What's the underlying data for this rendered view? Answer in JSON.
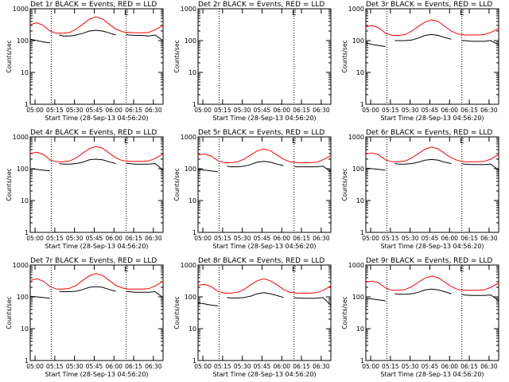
{
  "colors": {
    "events": "#000000",
    "lld": "#ff0000",
    "frame": "#000000",
    "background": "#ffffff"
  },
  "shared": {
    "xlabel": "Start Time (28-Sep-13 04:56:20)",
    "ylabel": "Counts/sec",
    "x_ticks": [
      "05:00",
      "05:15",
      "05:30",
      "05:45",
      "06:00",
      "06:15",
      "06:30"
    ],
    "y_ticks": [
      "1",
      "10",
      "100",
      "1000"
    ],
    "marker": "E",
    "legend": {
      "events": "BLACK = Events",
      "lld": "RED = LLD"
    }
  },
  "chart_data": [
    {
      "type": "line",
      "title": "Det 1r BLACK = Events, RED = LLD",
      "xlim": [
        "04:56:20",
        "06:38"
      ],
      "ylim": [
        1,
        1000
      ],
      "yscale": "log",
      "xlabel": "Start Time (28-Sep-13 04:56:20)",
      "ylabel": "Counts/sec",
      "has_data": true,
      "x_minutes": [
        0,
        5,
        10,
        15,
        20,
        22,
        25,
        30,
        35,
        40,
        45,
        50,
        55,
        60,
        65,
        70,
        73,
        75,
        80,
        85,
        90,
        95,
        101
      ],
      "series": [
        {
          "name": "Events",
          "values": [
            110,
            100,
            90,
            85,
            null,
            150,
            140,
            140,
            150,
            170,
            200,
            210,
            200,
            175,
            150,
            null,
            155,
            150,
            145,
            145,
            140,
            150,
            100
          ]
        },
        {
          "name": "LLD",
          "values": [
            320,
            360,
            300,
            200,
            170,
            170,
            170,
            180,
            230,
            330,
            470,
            560,
            480,
            330,
            230,
            190,
            180,
            180,
            175,
            175,
            180,
            220,
            300
          ]
        }
      ]
    },
    {
      "type": "line",
      "title": "Det 2r BLACK = Events, RED = LLD",
      "xlim": [
        "04:56:20",
        "06:38"
      ],
      "ylim": [
        1,
        1000
      ],
      "yscale": "log",
      "xlabel": "Start Time (28-Sep-13 04:56:20)",
      "ylabel": "Counts/sec",
      "has_data": false,
      "x_minutes": [],
      "series": []
    },
    {
      "type": "line",
      "title": "Det 3r BLACK = Events, RED = LLD",
      "xlim": [
        "04:56:20",
        "06:38"
      ],
      "ylim": [
        1,
        1000
      ],
      "yscale": "log",
      "xlabel": "Start Time (28-Sep-13 04:56:20)",
      "ylabel": "Counts/sec",
      "has_data": true,
      "x_minutes": [
        0,
        5,
        10,
        15,
        20,
        22,
        25,
        30,
        35,
        40,
        45,
        50,
        55,
        60,
        65,
        70,
        73,
        75,
        80,
        85,
        90,
        95,
        101
      ],
      "series": [
        {
          "name": "Events",
          "values": [
            85,
            75,
            70,
            65,
            null,
            100,
            100,
            100,
            105,
            120,
            145,
            155,
            145,
            125,
            110,
            null,
            100,
            100,
            95,
            95,
            95,
            100,
            75
          ]
        },
        {
          "name": "LLD",
          "values": [
            270,
            300,
            250,
            170,
            145,
            145,
            145,
            155,
            200,
            280,
            380,
            450,
            400,
            280,
            200,
            160,
            155,
            150,
            150,
            150,
            155,
            180,
            240
          ]
        }
      ]
    },
    {
      "type": "line",
      "title": "Det 4r BLACK = Events, RED = LLD",
      "xlim": [
        "04:56:20",
        "06:38"
      ],
      "ylim": [
        1,
        1000
      ],
      "yscale": "log",
      "xlabel": "Start Time (28-Sep-13 04:56:20)",
      "ylabel": "Counts/sec",
      "has_data": true,
      "x_minutes": [
        0,
        5,
        10,
        15,
        20,
        22,
        25,
        30,
        35,
        40,
        45,
        50,
        55,
        60,
        65,
        70,
        73,
        75,
        80,
        85,
        90,
        95,
        101
      ],
      "series": [
        {
          "name": "Events",
          "values": [
            100,
            95,
            90,
            85,
            null,
            145,
            140,
            140,
            145,
            160,
            190,
            200,
            190,
            165,
            145,
            null,
            150,
            145,
            140,
            140,
            140,
            145,
            90
          ]
        },
        {
          "name": "LLD",
          "values": [
            300,
            330,
            280,
            190,
            165,
            165,
            165,
            175,
            220,
            310,
            430,
            500,
            440,
            310,
            220,
            180,
            175,
            170,
            170,
            170,
            175,
            210,
            290
          ]
        }
      ]
    },
    {
      "type": "line",
      "title": "Det 5r BLACK = Events, RED = LLD",
      "xlim": [
        "04:56:20",
        "06:38"
      ],
      "ylim": [
        1,
        1000
      ],
      "yscale": "log",
      "xlabel": "Start Time (28-Sep-13 04:56:20)",
      "ylabel": "Counts/sec",
      "has_data": true,
      "x_minutes": [
        0,
        5,
        10,
        15,
        20,
        22,
        25,
        30,
        35,
        40,
        45,
        50,
        55,
        60,
        65,
        70,
        73,
        75,
        80,
        85,
        90,
        95,
        101
      ],
      "series": [
        {
          "name": "Events",
          "values": [
            95,
            90,
            85,
            80,
            null,
            120,
            115,
            115,
            120,
            135,
            160,
            170,
            160,
            140,
            125,
            null,
            120,
            115,
            115,
            115,
            115,
            120,
            80
          ]
        },
        {
          "name": "LLD",
          "values": [
            270,
            290,
            250,
            180,
            155,
            155,
            155,
            165,
            200,
            270,
            360,
            420,
            370,
            270,
            200,
            165,
            160,
            155,
            155,
            155,
            160,
            190,
            260
          ]
        }
      ]
    },
    {
      "type": "line",
      "title": "Det 6r BLACK = Events, RED = LLD",
      "xlim": [
        "04:56:20",
        "06:38"
      ],
      "ylim": [
        1,
        1000
      ],
      "yscale": "log",
      "xlabel": "Start Time (28-Sep-13 04:56:20)",
      "ylabel": "Counts/sec",
      "has_data": true,
      "x_minutes": [
        0,
        5,
        10,
        15,
        20,
        22,
        25,
        30,
        35,
        40,
        45,
        50,
        55,
        60,
        65,
        70,
        73,
        75,
        80,
        85,
        90,
        95,
        101
      ],
      "series": [
        {
          "name": "Events",
          "values": [
            105,
            100,
            95,
            90,
            null,
            145,
            140,
            140,
            145,
            160,
            185,
            195,
            185,
            160,
            145,
            null,
            145,
            140,
            135,
            135,
            135,
            140,
            90
          ]
        },
        {
          "name": "LLD",
          "values": [
            290,
            310,
            270,
            190,
            165,
            165,
            165,
            175,
            220,
            300,
            410,
            480,
            420,
            300,
            220,
            180,
            170,
            165,
            165,
            165,
            170,
            200,
            280
          ]
        }
      ]
    },
    {
      "type": "line",
      "title": "Det 7r BLACK = Events, RED = LLD",
      "xlim": [
        "04:56:20",
        "06:38"
      ],
      "ylim": [
        1,
        1000
      ],
      "yscale": "log",
      "xlabel": "Start Time (28-Sep-13 04:56:20)",
      "ylabel": "Counts/sec",
      "has_data": true,
      "x_minutes": [
        0,
        5,
        10,
        15,
        20,
        22,
        25,
        30,
        35,
        40,
        45,
        50,
        55,
        60,
        65,
        70,
        73,
        75,
        80,
        85,
        90,
        95,
        101
      ],
      "series": [
        {
          "name": "Events",
          "values": [
            105,
            100,
            95,
            90,
            null,
            150,
            145,
            145,
            150,
            170,
            200,
            210,
            200,
            170,
            150,
            null,
            150,
            145,
            140,
            140,
            140,
            145,
            95
          ]
        },
        {
          "name": "LLD",
          "values": [
            330,
            370,
            310,
            210,
            175,
            175,
            175,
            185,
            230,
            330,
            460,
            540,
            470,
            330,
            230,
            190,
            180,
            175,
            175,
            175,
            180,
            220,
            310
          ]
        }
      ]
    },
    {
      "type": "line",
      "title": "Det 8r BLACK = Events, RED = LLD",
      "xlim": [
        "04:56:20",
        "06:38"
      ],
      "ylim": [
        1,
        1000
      ],
      "yscale": "log",
      "xlabel": "Start Time (28-Sep-13 04:56:20)",
      "ylabel": "Counts/sec",
      "has_data": true,
      "x_minutes": [
        0,
        5,
        10,
        15,
        20,
        22,
        25,
        30,
        35,
        40,
        45,
        50,
        55,
        60,
        65,
        70,
        73,
        75,
        80,
        85,
        90,
        95,
        101
      ],
      "series": [
        {
          "name": "Events",
          "values": [
            65,
            60,
            55,
            52,
            null,
            95,
            92,
            92,
            95,
            105,
            125,
            135,
            125,
            110,
            95,
            null,
            95,
            92,
            90,
            90,
            90,
            95,
            55
          ]
        },
        {
          "name": "LLD",
          "values": [
            230,
            250,
            210,
            150,
            130,
            130,
            130,
            140,
            170,
            240,
            320,
            370,
            320,
            240,
            170,
            140,
            135,
            130,
            130,
            130,
            135,
            160,
            220
          ]
        }
      ]
    },
    {
      "type": "line",
      "title": "Det 9r BLACK = Events, RED = LLD",
      "xlim": [
        "04:56:20",
        "06:38"
      ],
      "ylim": [
        1,
        1000
      ],
      "yscale": "log",
      "xlabel": "Start Time (28-Sep-13 04:56:20)",
      "ylabel": "Counts/sec",
      "has_data": true,
      "x_minutes": [
        0,
        5,
        10,
        15,
        20,
        22,
        25,
        30,
        35,
        40,
        45,
        50,
        55,
        60,
        65,
        70,
        73,
        75,
        80,
        85,
        90,
        95,
        101
      ],
      "series": [
        {
          "name": "Events",
          "values": [
            90,
            85,
            80,
            75,
            null,
            125,
            120,
            120,
            125,
            140,
            165,
            175,
            165,
            145,
            125,
            null,
            120,
            115,
            110,
            110,
            110,
            115,
            75
          ]
        },
        {
          "name": "LLD",
          "values": [
            290,
            310,
            270,
            190,
            160,
            160,
            160,
            170,
            210,
            290,
            390,
            450,
            400,
            290,
            210,
            170,
            165,
            160,
            160,
            160,
            165,
            200,
            270
          ]
        }
      ]
    }
  ]
}
